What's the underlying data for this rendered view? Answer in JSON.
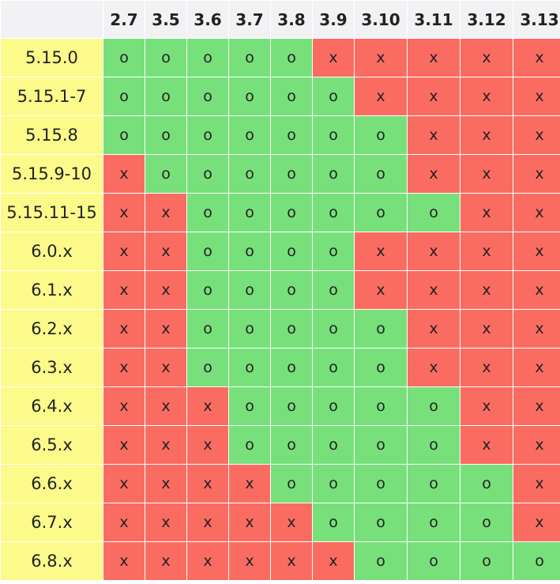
{
  "columns": [
    "2.7",
    "3.5",
    "3.6",
    "3.7",
    "3.8",
    "3.9",
    "3.10",
    "3.11",
    "3.12",
    "3.13"
  ],
  "legend": {
    "supported": "o",
    "unsupported": "x"
  },
  "colors": {
    "supported": "#78e07a",
    "unsupported": "#fa6c62",
    "row_header": "#fbfa8a",
    "column_header": "#f2f2f4"
  },
  "rows": [
    {
      "label": "5.15.0",
      "cells": [
        "o",
        "o",
        "o",
        "o",
        "o",
        "x",
        "x",
        "x",
        "x",
        "x"
      ]
    },
    {
      "label": "5.15.1-7",
      "cells": [
        "o",
        "o",
        "o",
        "o",
        "o",
        "o",
        "x",
        "x",
        "x",
        "x"
      ]
    },
    {
      "label": "5.15.8",
      "cells": [
        "o",
        "o",
        "o",
        "o",
        "o",
        "o",
        "o",
        "x",
        "x",
        "x"
      ]
    },
    {
      "label": "5.15.9-10",
      "cells": [
        "x",
        "o",
        "o",
        "o",
        "o",
        "o",
        "o",
        "x",
        "x",
        "x"
      ]
    },
    {
      "label": "5.15.11-15",
      "cells": [
        "x",
        "x",
        "o",
        "o",
        "o",
        "o",
        "o",
        "o",
        "x",
        "x"
      ]
    },
    {
      "label": "6.0.x",
      "cells": [
        "x",
        "x",
        "o",
        "o",
        "o",
        "o",
        "x",
        "x",
        "x",
        "x"
      ]
    },
    {
      "label": "6.1.x",
      "cells": [
        "x",
        "x",
        "o",
        "o",
        "o",
        "o",
        "x",
        "x",
        "x",
        "x"
      ]
    },
    {
      "label": "6.2.x",
      "cells": [
        "x",
        "x",
        "o",
        "o",
        "o",
        "o",
        "o",
        "x",
        "x",
        "x"
      ]
    },
    {
      "label": "6.3.x",
      "cells": [
        "x",
        "x",
        "o",
        "o",
        "o",
        "o",
        "o",
        "x",
        "x",
        "x"
      ]
    },
    {
      "label": "6.4.x",
      "cells": [
        "x",
        "x",
        "x",
        "o",
        "o",
        "o",
        "o",
        "o",
        "x",
        "x"
      ]
    },
    {
      "label": "6.5.x",
      "cells": [
        "x",
        "x",
        "x",
        "o",
        "o",
        "o",
        "o",
        "o",
        "x",
        "x"
      ]
    },
    {
      "label": "6.6.x",
      "cells": [
        "x",
        "x",
        "x",
        "x",
        "o",
        "o",
        "o",
        "o",
        "o",
        "x"
      ]
    },
    {
      "label": "6.7.x",
      "cells": [
        "x",
        "x",
        "x",
        "x",
        "x",
        "o",
        "o",
        "o",
        "o",
        "x"
      ]
    },
    {
      "label": "6.8.x",
      "cells": [
        "x",
        "x",
        "x",
        "x",
        "x",
        "x",
        "o",
        "o",
        "o",
        "o"
      ]
    }
  ]
}
